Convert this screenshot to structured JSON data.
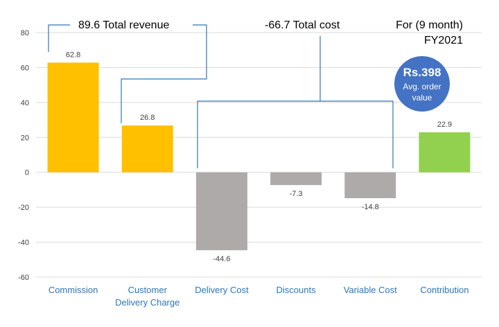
{
  "chart_data": {
    "type": "bar",
    "categories": [
      "Commission",
      "Customer Delivery Charge",
      "Delivery Cost",
      "Discounts",
      "Variable Cost",
      "Contribution"
    ],
    "category_lines": [
      [
        "Commission"
      ],
      [
        "Customer",
        "Delivery Charge"
      ],
      [
        "Delivery Cost"
      ],
      [
        "Discounts"
      ],
      [
        "Variable Cost"
      ],
      [
        "Contribution"
      ]
    ],
    "values": [
      62.8,
      26.8,
      -44.6,
      -7.3,
      -14.8,
      22.9
    ],
    "value_labels": [
      "62.8",
      "26.8",
      "-44.6",
      "-7.3",
      "-14.8",
      "22.9"
    ],
    "bar_colors": [
      "#FFC000",
      "#FFC000",
      "#AEAAAA",
      "#AEAAAA",
      "#AEAAAA",
      "#92D050"
    ],
    "ylim": [
      -60,
      80
    ],
    "yticks": [
      -60,
      -40,
      -20,
      0,
      20,
      40,
      60,
      80
    ],
    "ytick_labels": [
      "-60",
      "-40",
      "-20",
      "0",
      "20",
      "40",
      "60",
      "80"
    ],
    "grid": true,
    "title": "",
    "xlabel": "",
    "ylabel": "",
    "annotations": {
      "revenue": "89.6 Total revenue",
      "cost": "-66.7 Total cost",
      "period_line1": "For (9 month)",
      "period_line2": "FY2021",
      "badge_value": "Rs.398",
      "badge_line1": "Avg. order",
      "badge_line2": "value"
    },
    "colors": {
      "revenue": "#FFC000",
      "cost": "#AEAAAA",
      "contribution": "#92D050",
      "bracket": "#2E75B6",
      "badge": "#4472C4",
      "category_text": "#2E75B6"
    }
  }
}
